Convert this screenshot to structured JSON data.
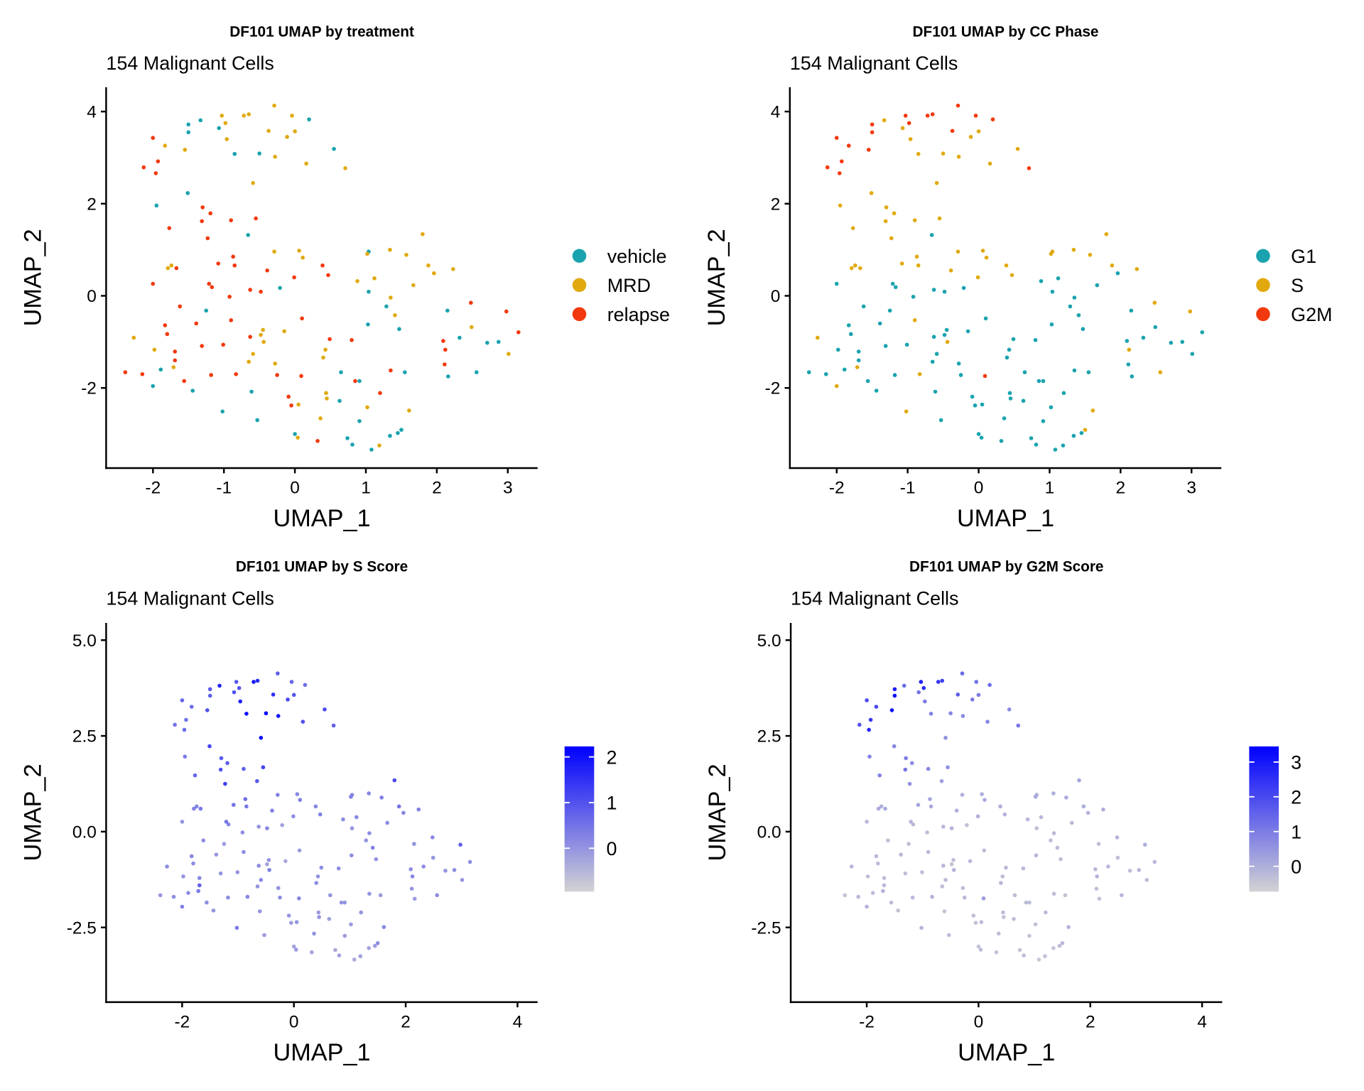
{
  "subtitle": "154 Malignant Cells",
  "colors": {
    "vehicle": "#1AA3AE",
    "MRD": "#E1A90E",
    "relapse": "#F2390E",
    "G1": "#1AA3AE",
    "S": "#E1A90E",
    "G2M": "#F2390E",
    "low": "#D3D3D3",
    "high": "#0000FF"
  },
  "chart_data": [
    {
      "type": "scatter",
      "title": "DF101 UMAP by treatment",
      "subtitle": "154 Malignant Cells",
      "xlabel": "UMAP_1",
      "ylabel": "UMAP_2",
      "xlim": [
        -2.66,
        3.42
      ],
      "ylim": [
        -3.74,
        4.53
      ],
      "xticks": [
        -2,
        -1,
        0,
        1,
        2,
        3
      ],
      "yticks": [
        -2,
        0,
        2,
        4
      ],
      "tick_labels_x": [
        "-2",
        "-1",
        "0",
        "1",
        "2",
        "3"
      ],
      "tick_labels_y": [
        "-2",
        "0",
        "2",
        "4"
      ],
      "color_by": "treatment",
      "legend": {
        "type": "discrete",
        "placement": "right",
        "entries": [
          "vehicle",
          "MRD",
          "relapse"
        ]
      }
    },
    {
      "type": "scatter",
      "title": "DF101 UMAP by CC Phase",
      "subtitle": "154 Malignant Cells",
      "xlabel": "UMAP_1",
      "ylabel": "UMAP_2",
      "xlim": [
        -2.66,
        3.42
      ],
      "ylim": [
        -3.74,
        4.53
      ],
      "xticks": [
        -2,
        -1,
        0,
        1,
        2,
        3
      ],
      "yticks": [
        -2,
        0,
        2,
        4
      ],
      "tick_labels_x": [
        "-2",
        "-1",
        "0",
        "1",
        "2",
        "3"
      ],
      "tick_labels_y": [
        "-2",
        "0",
        "2",
        "4"
      ],
      "color_by": "phase",
      "legend": {
        "type": "discrete",
        "placement": "right",
        "entries": [
          "G1",
          "S",
          "G2M"
        ]
      }
    },
    {
      "type": "scatter",
      "title": "DF101 UMAP by S Score",
      "subtitle": "154 Malignant Cells",
      "xlabel": "UMAP_1",
      "ylabel": "UMAP_2",
      "xlim": [
        -3.36,
        4.36
      ],
      "ylim": [
        -4.45,
        5.45
      ],
      "xticks": [
        -2,
        0,
        2,
        4
      ],
      "yticks": [
        -2.5,
        0,
        2.5,
        5
      ],
      "tick_labels_x": [
        "-2",
        "0",
        "2",
        "4"
      ],
      "tick_labels_y": [
        "-2.5",
        "0.0",
        "2.5",
        "5.0"
      ],
      "color_by": "s_score",
      "legend": {
        "type": "continuous",
        "placement": "right",
        "range": [
          -0.95,
          2.23
        ],
        "ticks": [
          0,
          1,
          2
        ],
        "tick_labels": [
          "0",
          "1",
          "2"
        ]
      }
    },
    {
      "type": "scatter",
      "title": "DF101 UMAP by G2M Score",
      "subtitle": "154 Malignant Cells",
      "xlabel": "UMAP_1",
      "ylabel": "UMAP_2",
      "xlim": [
        -3.36,
        4.36
      ],
      "ylim": [
        -4.45,
        5.45
      ],
      "xticks": [
        -2,
        0,
        2,
        4
      ],
      "yticks": [
        -2.5,
        0,
        2.5,
        5
      ],
      "tick_labels_x": [
        "-2",
        "0",
        "2",
        "4"
      ],
      "tick_labels_y": [
        "-2.5",
        "0.0",
        "2.5",
        "5.0"
      ],
      "color_by": "g2m_score",
      "legend": {
        "type": "continuous",
        "placement": "right",
        "range": [
          -0.73,
          3.45
        ],
        "ticks": [
          0,
          1,
          2,
          3
        ],
        "tick_labels": [
          "0",
          "1",
          "2",
          "3"
        ]
      }
    }
  ],
  "cell_fields": [
    "umap_1",
    "umap_2",
    "treatment",
    "phase",
    "s_score",
    "g2m_score"
  ],
  "cells": [
    [
      -1.5,
      3.72,
      "vehicle",
      "G2M",
      0.9,
      2.9
    ],
    [
      -1.5,
      3.55,
      "vehicle",
      "G2M",
      0.8,
      3.2
    ],
    [
      -1.33,
      3.81,
      "vehicle",
      "S",
      1.7,
      1.3
    ],
    [
      -1.07,
      3.64,
      "vehicle",
      "S",
      1.0,
      1.1
    ],
    [
      -1.03,
      3.91,
      "MRD",
      "G2M",
      0.9,
      2.8
    ],
    [
      -0.98,
      3.75,
      "MRD",
      "G2M",
      1.0,
      2.6
    ],
    [
      -0.96,
      3.4,
      "MRD",
      "S",
      1.8,
      1.0
    ],
    [
      -0.85,
      3.08,
      "vehicle",
      "S",
      2.0,
      0.9
    ],
    [
      -0.72,
      3.91,
      "MRD",
      "G2M",
      1.9,
      2.4
    ],
    [
      -0.65,
      3.94,
      "MRD",
      "G2M",
      1.6,
      2.2
    ],
    [
      -0.5,
      3.09,
      "vehicle",
      "S",
      2.1,
      0.8
    ],
    [
      -0.37,
      3.58,
      "MRD",
      "G2M",
      1.5,
      1.6
    ],
    [
      -0.29,
      4.13,
      "MRD",
      "G2M",
      0.8,
      1.4
    ],
    [
      -0.28,
      3.02,
      "MRD",
      "S",
      1.9,
      0.7
    ],
    [
      -0.11,
      3.45,
      "MRD",
      "S",
      1.1,
      1.0
    ],
    [
      -0.04,
      3.91,
      "MRD",
      "G2M",
      0.7,
      1.2
    ],
    [
      0.0,
      3.57,
      "MRD",
      "S",
      0.9,
      1.0
    ],
    [
      0.2,
      3.83,
      "vehicle",
      "G2M",
      0.6,
      1.3
    ],
    [
      0.16,
      2.87,
      "MRD",
      "S",
      1.0,
      0.8
    ],
    [
      0.55,
      3.19,
      "vehicle",
      "S",
      1.1,
      0.7
    ],
    [
      0.71,
      2.77,
      "MRD",
      "G2M",
      0.8,
      1.1
    ],
    [
      -0.59,
      2.45,
      "MRD",
      "S",
      2.0,
      0.6
    ],
    [
      -1.55,
      3.17,
      "MRD",
      "G2M",
      1.0,
      3.1
    ],
    [
      -2.0,
      3.43,
      "relapse",
      "G2M",
      0.7,
      1.9
    ],
    [
      -1.93,
      2.92,
      "relapse",
      "G2M",
      0.5,
      2.3
    ],
    [
      -1.96,
      2.66,
      "relapse",
      "G2M",
      0.6,
      2.7
    ],
    [
      -2.13,
      2.79,
      "relapse",
      "G2M",
      0.5,
      1.8
    ],
    [
      -1.83,
      3.26,
      "MRD",
      "G2M",
      0.6,
      2.0
    ],
    [
      -1.95,
      1.96,
      "vehicle",
      "S",
      0.4,
      0.9
    ],
    [
      -1.51,
      2.23,
      "vehicle",
      "S",
      1.2,
      0.8
    ],
    [
      -1.3,
      1.92,
      "relapse",
      "S",
      0.9,
      1.0
    ],
    [
      -1.19,
      1.79,
      "relapse",
      "S",
      0.8,
      0.7
    ],
    [
      -1.31,
      1.62,
      "relapse",
      "S",
      1.0,
      1.1
    ],
    [
      -1.23,
      1.25,
      "relapse",
      "S",
      1.3,
      0.6
    ],
    [
      -1.77,
      1.47,
      "relapse",
      "S",
      0.7,
      0.9
    ],
    [
      -0.9,
      1.64,
      "relapse",
      "S",
      0.8,
      0.8
    ],
    [
      -0.55,
      1.68,
      "relapse",
      "S",
      1.2,
      0.6
    ],
    [
      -0.87,
      0.85,
      "relapse",
      "S",
      0.6,
      0.2
    ],
    [
      -0.85,
      0.66,
      "relapse",
      "S",
      0.4,
      0.1
    ],
    [
      -1.08,
      0.7,
      "relapse",
      "S",
      0.5,
      0.2
    ],
    [
      -0.66,
      1.32,
      "vehicle",
      "G1",
      0.9,
      0.3
    ],
    [
      -0.29,
      0.96,
      "MRD",
      "S",
      0.3,
      0.0
    ],
    [
      0.06,
      0.98,
      "MRD",
      "S",
      0.2,
      0.0
    ],
    [
      0.11,
      0.83,
      "MRD",
      "S",
      0.3,
      0.1
    ],
    [
      0.39,
      0.66,
      "relapse",
      "S",
      0.2,
      0.0
    ],
    [
      0.47,
      0.45,
      "relapse",
      "S",
      0.3,
      -0.1
    ],
    [
      -1.79,
      0.6,
      "MRD",
      "S",
      0.3,
      0.1
    ],
    [
      -1.74,
      0.66,
      "MRD",
      "S",
      0.2,
      0.0
    ],
    [
      -1.67,
      0.6,
      "relapse",
      "S",
      0.4,
      0.1
    ],
    [
      -2.0,
      0.26,
      "relapse",
      "G1",
      0.0,
      -0.2
    ],
    [
      -1.21,
      0.26,
      "relapse",
      "G1",
      0.5,
      -0.1
    ],
    [
      -1.17,
      0.19,
      "relapse",
      "G1",
      0.2,
      -0.2
    ],
    [
      -0.92,
      -0.02,
      "relapse",
      "G1",
      0.1,
      -0.3
    ],
    [
      -0.63,
      0.13,
      "relapse",
      "G1",
      0.0,
      -0.2
    ],
    [
      -0.48,
      0.09,
      "relapse",
      "G1",
      0.2,
      -0.1
    ],
    [
      -0.21,
      0.17,
      "vehicle",
      "G1",
      -0.2,
      -0.3
    ],
    [
      -0.01,
      0.4,
      "relapse",
      "S",
      0.1,
      0.0
    ],
    [
      -0.39,
      0.55,
      "relapse",
      "S",
      0.3,
      0.0
    ],
    [
      -0.9,
      -0.53,
      "relapse",
      "S",
      0.1,
      -0.2
    ],
    [
      -1.25,
      -0.32,
      "vehicle",
      "G1",
      -0.1,
      -0.3
    ],
    [
      -1.39,
      -0.6,
      "relapse",
      "G1",
      0.0,
      -0.2
    ],
    [
      -1.62,
      -0.23,
      "relapse",
      "G1",
      0.1,
      -0.3
    ],
    [
      -0.45,
      -0.74,
      "MRD",
      "G1",
      0.0,
      -0.3
    ],
    [
      -0.48,
      -0.85,
      "MRD",
      "G1",
      -0.2,
      -0.4
    ],
    [
      -0.15,
      -0.77,
      "MRD",
      "G1",
      -0.3,
      -0.2
    ],
    [
      0.1,
      -0.49,
      "relapse",
      "G1",
      -0.1,
      -0.3
    ],
    [
      -1.83,
      -0.64,
      "relapse",
      "G1",
      0.2,
      -0.2
    ],
    [
      -1.8,
      -0.83,
      "relapse",
      "G1",
      0.1,
      -0.3
    ],
    [
      -2.27,
      -0.91,
      "MRD",
      "S",
      0.1,
      -0.2
    ],
    [
      -1.98,
      -1.17,
      "MRD",
      "G1",
      0.0,
      -0.3
    ],
    [
      -2.15,
      -1.7,
      "relapse",
      "G1",
      0.1,
      -0.2
    ],
    [
      -2.39,
      -1.66,
      "relapse",
      "G1",
      0.0,
      -0.4
    ],
    [
      -2.0,
      -1.96,
      "vehicle",
      "S",
      0.3,
      -0.1
    ],
    [
      -1.89,
      -1.6,
      "vehicle",
      "G1",
      0.1,
      -0.3
    ],
    [
      -1.69,
      -1.4,
      "relapse",
      "G1",
      0.8,
      -0.2
    ],
    [
      -1.69,
      -1.21,
      "relapse",
      "G1",
      0.2,
      -0.3
    ],
    [
      -1.71,
      -1.55,
      "MRD",
      "S",
      0.4,
      -0.1
    ],
    [
      -1.56,
      -1.85,
      "relapse",
      "G1",
      0.1,
      -0.3
    ],
    [
      -1.44,
      -2.06,
      "vehicle",
      "G1",
      0.0,
      -0.4
    ],
    [
      -1.31,
      -1.09,
      "relapse",
      "G1",
      0.0,
      -0.3
    ],
    [
      -1.18,
      -1.72,
      "relapse",
      "G1",
      0.1,
      -0.2
    ],
    [
      -1.01,
      -1.06,
      "relapse",
      "G1",
      0.0,
      -0.3
    ],
    [
      -0.83,
      -1.7,
      "relapse",
      "S",
      0.2,
      -0.1
    ],
    [
      -0.61,
      -2.08,
      "vehicle",
      "G1",
      0.0,
      -0.4
    ],
    [
      -0.53,
      -2.7,
      "vehicle",
      "G1",
      -0.1,
      -0.3
    ],
    [
      -0.59,
      -1.26,
      "MRD",
      "G1",
      0.2,
      -0.2
    ],
    [
      -0.65,
      -1.43,
      "MRD",
      "G1",
      0.0,
      -0.3
    ],
    [
      -0.63,
      -0.89,
      "relapse",
      "G1",
      0.1,
      -0.2
    ],
    [
      -0.44,
      -1.0,
      "MRD",
      "S",
      0.3,
      -0.1
    ],
    [
      -0.28,
      -1.47,
      "MRD",
      "G1",
      0.0,
      -0.3
    ],
    [
      -0.25,
      -1.72,
      "relapse",
      "G1",
      0.1,
      -0.2
    ],
    [
      0.09,
      -1.74,
      "relapse",
      "G2M",
      0.2,
      0.4
    ],
    [
      -0.09,
      -2.19,
      "relapse",
      "G1",
      0.0,
      -0.3
    ],
    [
      -0.05,
      -2.38,
      "relapse",
      "G1",
      -0.1,
      -0.4
    ],
    [
      0.05,
      -2.36,
      "MRD",
      "G1",
      0.0,
      -0.3
    ],
    [
      0.0,
      -3.0,
      "vehicle",
      "G1",
      -0.2,
      -0.4
    ],
    [
      0.04,
      -3.08,
      "MRD",
      "G1",
      -0.1,
      -0.3
    ],
    [
      0.32,
      -3.15,
      "relapse",
      "G1",
      -0.2,
      -0.4
    ],
    [
      0.36,
      -2.66,
      "MRD",
      "G1",
      0.0,
      -0.3
    ],
    [
      0.4,
      -1.34,
      "MRD",
      "G1",
      0.1,
      -0.2
    ],
    [
      0.43,
      -1.17,
      "MRD",
      "G1",
      0.0,
      -0.3
    ],
    [
      0.49,
      -0.94,
      "relapse",
      "G1",
      0.1,
      -0.2
    ],
    [
      0.44,
      -2.11,
      "MRD",
      "G1",
      -0.1,
      -0.3
    ],
    [
      0.45,
      -2.23,
      "MRD",
      "G1",
      0.0,
      -0.4
    ],
    [
      0.63,
      -2.28,
      "vehicle",
      "G1",
      -0.2,
      -0.3
    ],
    [
      0.65,
      -1.66,
      "vehicle",
      "G1",
      0.0,
      -0.3
    ],
    [
      0.8,
      -0.96,
      "relapse",
      "G1",
      0.1,
      -0.2
    ],
    [
      0.85,
      -1.85,
      "relapse",
      "G1",
      0.0,
      -0.3
    ],
    [
      1.02,
      -2.42,
      "MRD",
      "G1",
      -0.1,
      -0.4
    ],
    [
      1.2,
      -2.11,
      "relapse",
      "G1",
      0.0,
      -0.3
    ],
    [
      0.74,
      -3.09,
      "vehicle",
      "G1",
      -0.3,
      -0.4
    ],
    [
      0.81,
      -3.23,
      "vehicle",
      "G1",
      -0.2,
      -0.3
    ],
    [
      0.91,
      -2.72,
      "vehicle",
      "G1",
      -0.1,
      -0.4
    ],
    [
      1.08,
      -3.34,
      "vehicle",
      "G1",
      -0.3,
      -0.5
    ],
    [
      1.19,
      -3.25,
      "MRD",
      "G1",
      -0.2,
      -0.4
    ],
    [
      0.91,
      -1.85,
      "vehicle",
      "G1",
      0.0,
      -0.3
    ],
    [
      1.03,
      -0.62,
      "vehicle",
      "G1",
      0.1,
      -0.2
    ],
    [
      1.35,
      -1.62,
      "relapse",
      "G1",
      0.0,
      -0.3
    ],
    [
      1.34,
      -3.04,
      "vehicle",
      "G1",
      -0.2,
      -0.4
    ],
    [
      1.45,
      -2.98,
      "vehicle",
      "G1",
      -0.1,
      -0.3
    ],
    [
      1.5,
      -2.91,
      "vehicle",
      "S",
      0.1,
      -0.2
    ],
    [
      -1.02,
      -2.51,
      "vehicle",
      "S",
      0.4,
      -0.1
    ],
    [
      1.04,
      0.96,
      "vehicle",
      "S",
      0.2,
      0.0
    ],
    [
      1.02,
      0.91,
      "MRD",
      "S",
      0.3,
      0.1
    ],
    [
      1.34,
      1.0,
      "MRD",
      "S",
      0.2,
      0.0
    ],
    [
      1.57,
      0.89,
      "MRD",
      "S",
      0.3,
      0.1
    ],
    [
      1.8,
      1.34,
      "MRD",
      "S",
      1.1,
      0.2
    ],
    [
      0.88,
      0.32,
      "MRD",
      "G1",
      0.1,
      -0.2
    ],
    [
      1.04,
      0.09,
      "vehicle",
      "G1",
      0.0,
      -0.3
    ],
    [
      1.12,
      0.38,
      "MRD",
      "G1",
      0.2,
      -0.2
    ],
    [
      1.29,
      -0.23,
      "vehicle",
      "G1",
      0.0,
      -0.3
    ],
    [
      1.35,
      -0.04,
      "MRD",
      "G1",
      0.1,
      -0.2
    ],
    [
      1.41,
      -0.42,
      "MRD",
      "G1",
      0.3,
      -0.2
    ],
    [
      1.47,
      -0.72,
      "vehicle",
      "G1",
      0.0,
      -0.3
    ],
    [
      1.55,
      -1.66,
      "vehicle",
      "G1",
      -0.1,
      -0.4
    ],
    [
      1.61,
      -2.49,
      "MRD",
      "S",
      0.2,
      -0.1
    ],
    [
      1.67,
      0.23,
      "MRD",
      "G1",
      0.1,
      -0.2
    ],
    [
      1.88,
      0.66,
      "MRD",
      "S",
      0.5,
      0.0
    ],
    [
      1.96,
      0.49,
      "MRD",
      "G1",
      0.2,
      -0.1
    ],
    [
      2.15,
      -0.32,
      "vehicle",
      "G1",
      0.0,
      -0.3
    ],
    [
      2.23,
      0.58,
      "MRD",
      "S",
      0.3,
      0.0
    ],
    [
      2.09,
      -0.98,
      "relapse",
      "G1",
      0.1,
      -0.2
    ],
    [
      2.12,
      -1.17,
      "relapse",
      "S",
      0.2,
      -0.1
    ],
    [
      2.16,
      -1.75,
      "vehicle",
      "G1",
      -0.1,
      -0.4
    ],
    [
      2.11,
      -1.49,
      "relapse",
      "G1",
      0.0,
      -0.3
    ],
    [
      2.32,
      -0.91,
      "vehicle",
      "G1",
      0.1,
      -0.2
    ],
    [
      2.48,
      -0.15,
      "relapse",
      "S",
      0.2,
      -0.1
    ],
    [
      2.49,
      -0.68,
      "MRD",
      "G1",
      0.0,
      -0.3
    ],
    [
      2.56,
      -1.66,
      "vehicle",
      "S",
      0.1,
      -0.2
    ],
    [
      2.71,
      -1.02,
      "vehicle",
      "G1",
      0.0,
      -0.3
    ],
    [
      2.87,
      -1.0,
      "vehicle",
      "G1",
      0.1,
      -0.2
    ],
    [
      2.98,
      -0.34,
      "relapse",
      "S",
      0.8,
      0.0
    ],
    [
      3.01,
      -1.26,
      "MRD",
      "G1",
      0.0,
      -0.3
    ],
    [
      3.15,
      -0.79,
      "relapse",
      "G1",
      0.1,
      -0.2
    ]
  ]
}
